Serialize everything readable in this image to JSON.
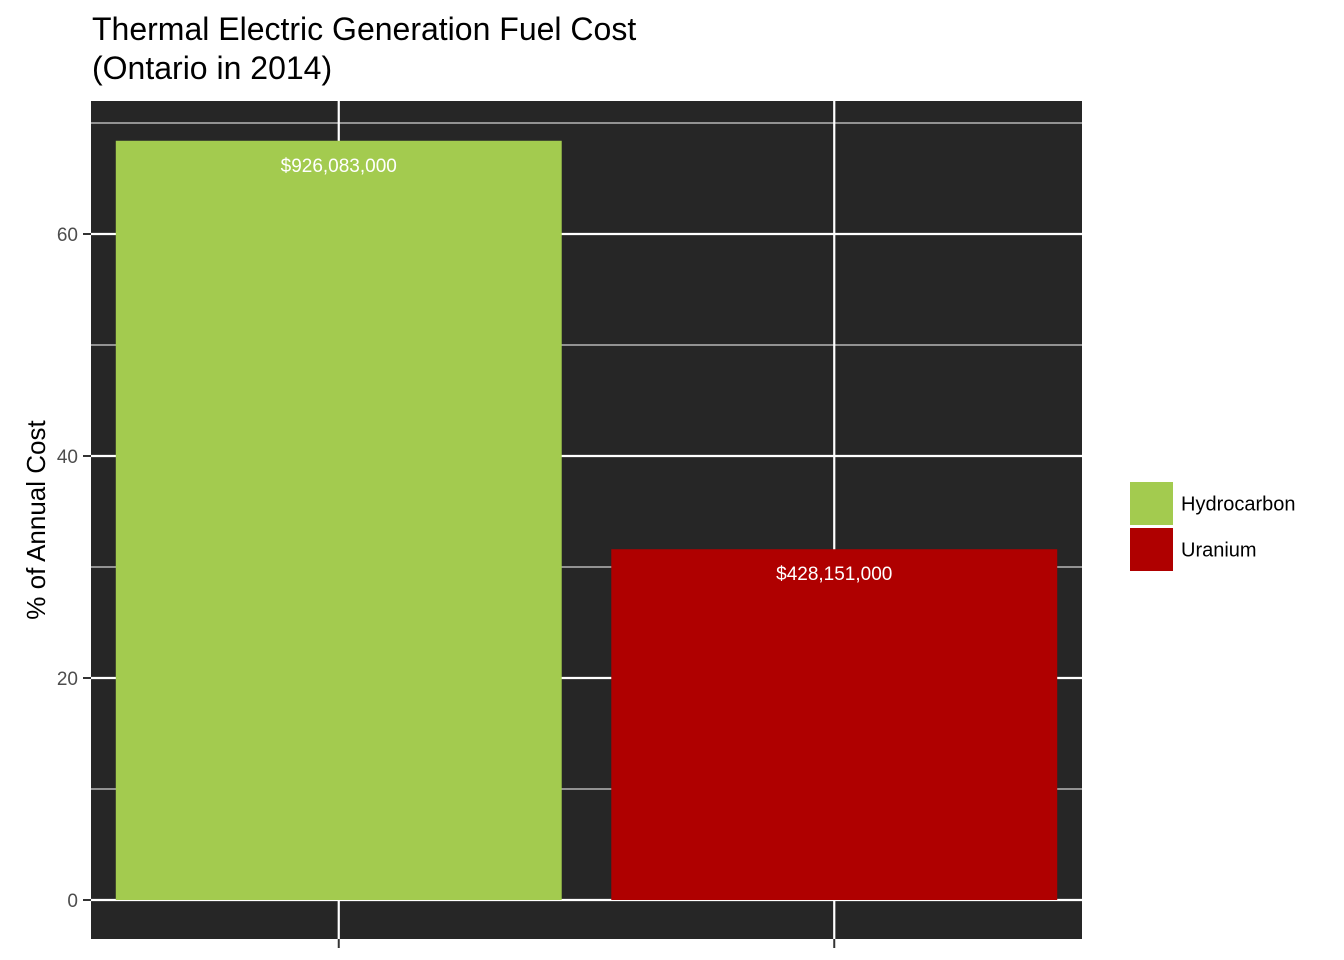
{
  "chart_data": {
    "type": "bar",
    "title_lines": [
      "Thermal Electric Generation Fuel Cost",
      "(Ontario in 2014)"
    ],
    "xlabel": "",
    "ylabel": "% of Annual Cost",
    "ylim": [
      0,
      70
    ],
    "y_ticks": [
      0,
      20,
      40,
      60
    ],
    "y_minor_ticks": [
      10,
      30,
      50,
      70
    ],
    "categories": [
      "Hydrocarbon",
      "Uranium"
    ],
    "values": [
      68.4,
      31.6
    ],
    "value_labels": [
      "$926,083,000",
      "$428,151,000"
    ],
    "colors": [
      "#a3cb4f",
      "#af0000"
    ],
    "legend": {
      "position": "right",
      "entries": [
        "Hydrocarbon",
        "Uranium"
      ]
    },
    "grid": true,
    "panel_background": "#262626",
    "grid_color": "#ffffff"
  }
}
